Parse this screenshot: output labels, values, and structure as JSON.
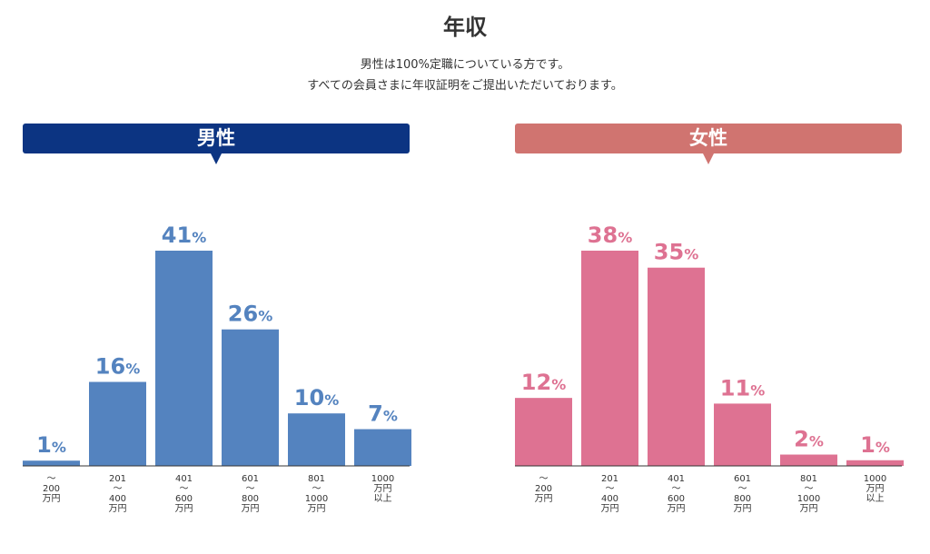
{
  "page": {
    "title": "年収",
    "line1": "男性は100%定職についている方です。",
    "line2": "すべての会員さまに年収証明をご提出いただいております。"
  },
  "colors": {
    "men_header": "#0c3482",
    "men_bar": "#5483bf",
    "women_header": "#d07470",
    "women_bar": "#de7292",
    "axis": "#333333"
  },
  "chart_data": [
    {
      "type": "bar",
      "title": "男性",
      "categories": [
        [
          "〜",
          "200",
          "万円"
        ],
        [
          "201",
          "〜",
          "400",
          "万円"
        ],
        [
          "401",
          "〜",
          "600",
          "万円"
        ],
        [
          "601",
          "〜",
          "800",
          "万円"
        ],
        [
          "801",
          "〜",
          "1000",
          "万円"
        ],
        [
          "1000",
          "万円",
          "以上"
        ]
      ],
      "values": [
        1,
        16,
        41,
        26,
        10,
        7
      ],
      "unit": "%",
      "ylim": [
        0,
        41
      ]
    },
    {
      "type": "bar",
      "title": "女性",
      "categories": [
        [
          "〜",
          "200",
          "万円"
        ],
        [
          "201",
          "〜",
          "400",
          "万円"
        ],
        [
          "401",
          "〜",
          "600",
          "万円"
        ],
        [
          "601",
          "〜",
          "800",
          "万円"
        ],
        [
          "801",
          "〜",
          "1000",
          "万円"
        ],
        [
          "1000",
          "万円",
          "以上"
        ]
      ],
      "values": [
        12,
        38,
        35,
        11,
        2,
        1
      ],
      "unit": "%",
      "ylim": [
        0,
        38
      ]
    }
  ]
}
